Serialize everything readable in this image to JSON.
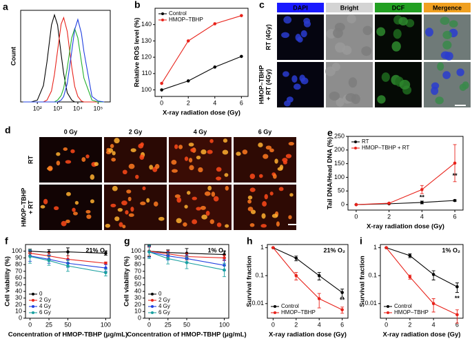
{
  "chart_data": [
    {
      "panel": "a",
      "type": "line",
      "ylabel": "Count",
      "markers": false,
      "logx": true,
      "xlim": [
        15,
        400000
      ],
      "ylim": [
        0,
        100
      ],
      "xticks": [
        {
          "value": 100,
          "label": "10²"
        },
        {
          "value": 1000,
          "label": "10³"
        },
        {
          "value": 10000,
          "label": "10⁴"
        },
        {
          "value": 100000,
          "label": "10⁵"
        }
      ],
      "yticks": [],
      "x": [
        20,
        50,
        100,
        200,
        300,
        500,
        700,
        1000,
        1500,
        2000,
        3000,
        5000,
        7000,
        10000,
        15000,
        20000,
        50000,
        100000,
        200000
      ],
      "series": [
        {
          "color": "#000000",
          "values": [
            0,
            0,
            2,
            18,
            44,
            84,
            95,
            84,
            52,
            31,
            10,
            2,
            0,
            0,
            0,
            0,
            0,
            0,
            0
          ]
        },
        {
          "color": "#e8221a",
          "values": [
            0,
            0,
            0,
            0,
            2,
            12,
            30,
            56,
            85,
            92,
            77,
            38,
            17,
            6,
            1,
            0,
            0,
            0,
            0
          ]
        },
        {
          "color": "#1fb02a",
          "values": [
            0,
            0,
            0,
            0,
            0,
            0,
            0,
            2,
            7,
            15,
            37,
            70,
            80,
            70,
            44,
            26,
            2,
            0,
            0
          ]
        },
        {
          "color": "#1f3fe0",
          "values": [
            0,
            0,
            0,
            0,
            0,
            0,
            0,
            0,
            2,
            6,
            20,
            55,
            79,
            90,
            75,
            55,
            6,
            1,
            0
          ]
        }
      ]
    },
    {
      "panel": "b",
      "type": "line",
      "xlabel": "X-ray radiation dose (Gy)",
      "ylabel": "Relative ROS level (%)",
      "xlim": [
        -0.5,
        6.5
      ],
      "ylim": [
        96,
        150
      ],
      "xticks": [
        0,
        2,
        4,
        6
      ],
      "yticks": [
        100,
        110,
        120,
        130,
        140
      ],
      "legend": "upper left",
      "x": [
        0,
        2,
        4,
        6
      ],
      "series": [
        {
          "name": "Control",
          "color": "#000000",
          "values": [
            100,
            105.5,
            114,
            120.5
          ]
        },
        {
          "name": "HMOP–TBHP",
          "color": "#e8221a",
          "values": [
            104,
            130,
            140.5,
            145.5
          ]
        }
      ]
    },
    {
      "panel": "e",
      "type": "line",
      "xlabel": "X-ray radiation dose (Gy)",
      "ylabel": "Tail DNA/Head DNA (%)",
      "xlim": [
        -0.5,
        6.5
      ],
      "ylim": [
        -20,
        250
      ],
      "xticks": [
        0,
        2,
        4,
        6
      ],
      "yticks": [
        0,
        50,
        100,
        150,
        200,
        250
      ],
      "legend": "upper left",
      "x": [
        0,
        2,
        4,
        6
      ],
      "annotations": [
        {
          "x": 4,
          "y": 25,
          "text": "**"
        },
        {
          "x": 6,
          "y": 105,
          "text": "**"
        }
      ],
      "series": [
        {
          "name": "RT",
          "color": "#000000",
          "values": [
            0,
            3,
            8,
            15
          ],
          "errors": [
            0,
            1,
            5,
            3
          ]
        },
        {
          "name": "HMOP–TBHP + RT",
          "color": "#e8221a",
          "values": [
            0,
            5,
            55,
            152
          ],
          "errors": [
            0,
            2,
            15,
            68
          ]
        }
      ]
    },
    {
      "panel": "f",
      "type": "line",
      "xlabel": "Concentration of HMOP-TBHP (μg/mL)",
      "ylabel": "Cell viability (%)",
      "note": "21% O₂",
      "xlim": [
        -6,
        106
      ],
      "ylim": [
        0,
        110
      ],
      "xticks": [
        0,
        25,
        50,
        100
      ],
      "yticks": [
        0,
        10,
        20,
        30,
        40,
        50,
        60,
        70,
        80,
        90,
        100
      ],
      "legend": "lower left",
      "x": [
        0,
        25,
        50,
        100
      ],
      "series": [
        {
          "name": "0",
          "color": "#000000",
          "values": [
            100,
            98.5,
            99,
            97
          ],
          "errors": [
            3,
            4,
            6,
            3
          ]
        },
        {
          "name": "2 Gy",
          "color": "#e8221a",
          "values": [
            97,
            93,
            88,
            82
          ],
          "errors": [
            4,
            5,
            5,
            2
          ]
        },
        {
          "name": "4 Gy",
          "color": "#1f3fe0",
          "values": [
            93,
            88,
            82,
            75
          ],
          "errors": [
            8,
            6,
            6,
            5
          ]
        },
        {
          "name": "6 Gy",
          "color": "#1aa0a0",
          "values": [
            92,
            86,
            78,
            68
          ],
          "errors": [
            10,
            7,
            8,
            5
          ]
        }
      ]
    },
    {
      "panel": "g",
      "type": "line",
      "xlabel": "Concentration of HMOP-TBHP (μg/mL)",
      "ylabel": "Cell viability (%)",
      "note": "1% O₂",
      "xlim": [
        -6,
        106
      ],
      "ylim": [
        0,
        110
      ],
      "xticks": [
        0,
        25,
        50,
        100
      ],
      "yticks": [
        0,
        10,
        20,
        30,
        40,
        50,
        60,
        70,
        80,
        90,
        100
      ],
      "legend": "lower left",
      "x": [
        0,
        25,
        50,
        100
      ],
      "series": [
        {
          "name": "0",
          "color": "#000000",
          "values": [
            100,
            98,
            97,
            95
          ],
          "errors": [
            8,
            4,
            7,
            5
          ]
        },
        {
          "name": "2 Gy",
          "color": "#e8221a",
          "values": [
            100,
            96,
            92,
            90
          ],
          "errors": [
            6,
            5,
            5,
            4
          ]
        },
        {
          "name": "4 Gy",
          "color": "#1f3fe0",
          "values": [
            99,
            93,
            89,
            79
          ],
          "errors": [
            8,
            6,
            5,
            8
          ]
        },
        {
          "name": "6 Gy",
          "color": "#1aa0a0",
          "values": [
            99,
            89,
            83,
            72
          ],
          "errors": [
            10,
            8,
            9,
            10
          ]
        }
      ]
    },
    {
      "panel": "h",
      "type": "line",
      "xlabel": "X-ray radiation dose (Gy)",
      "ylabel": "Survival fraction",
      "note": "21% O₂",
      "logy": true,
      "xlim": [
        -0.5,
        6.5
      ],
      "ylim": [
        0.003,
        1.3
      ],
      "xticks": [
        0,
        2,
        4,
        6
      ],
      "yticks": [
        0.01,
        0.1,
        1
      ],
      "legend": "lower left",
      "x": [
        0,
        2,
        4,
        6
      ],
      "annotations": [
        {
          "x": 6,
          "y": 0.013,
          "text": "**"
        }
      ],
      "series": [
        {
          "name": "Control",
          "color": "#000000",
          "values": [
            1,
            0.42,
            0.1,
            0.025
          ],
          "errors": [
            0,
            0.08,
            0.03,
            0.008
          ]
        },
        {
          "name": "HMOP–TBHP",
          "color": "#e8221a",
          "values": [
            1,
            0.1,
            0.015,
            0.006
          ],
          "errors": [
            0,
            0.03,
            0.008,
            0.0015
          ]
        }
      ]
    },
    {
      "panel": "i",
      "type": "line",
      "xlabel": "X-ray radiation dose (Gy)",
      "ylabel": "Survival fraction",
      "note": "1% O₂",
      "logy": true,
      "xlim": [
        -0.5,
        6.5
      ],
      "ylim": [
        0.003,
        1.3
      ],
      "xticks": [
        0,
        2,
        4,
        6
      ],
      "yticks": [
        0.01,
        0.1,
        1
      ],
      "legend": "lower left",
      "x": [
        0,
        2,
        4,
        6
      ],
      "annotations": [
        {
          "x": 6,
          "y": 0.015,
          "text": "**"
        }
      ],
      "series": [
        {
          "name": "Control",
          "color": "#000000",
          "values": [
            1,
            0.52,
            0.11,
            0.04
          ],
          "errors": [
            0,
            0.08,
            0.04,
            0.015
          ]
        },
        {
          "name": "HMOP–TBHP",
          "color": "#e8221a",
          "values": [
            1,
            0.09,
            0.01,
            0.004
          ],
          "errors": [
            0,
            0.015,
            0.005,
            0.002
          ]
        }
      ]
    }
  ],
  "image_panels": [
    {
      "panel": "c",
      "columns": [
        "DAPI",
        "Bright",
        "DCF",
        "Mergence"
      ],
      "colors": [
        "#1a1aff",
        "#d4d4d4",
        "#22a022",
        "#f0a020"
      ],
      "rows": [
        [
          "RT (4Gy)"
        ],
        [
          "HMOP–TBHP",
          "+ RT (4Gy)"
        ]
      ]
    },
    {
      "panel": "d",
      "columns": [
        "0 Gy",
        "2 Gy",
        "4 Gy",
        "6 Gy"
      ],
      "rows": [
        [
          "RT"
        ],
        [
          "HMOP–TBHP",
          "+ RT"
        ]
      ]
    }
  ]
}
